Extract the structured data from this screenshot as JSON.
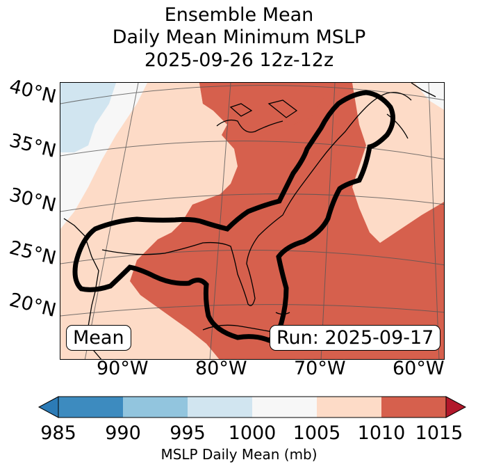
{
  "title": {
    "line1": "Ensemble Mean",
    "line2": "Daily Mean Minimum MSLP",
    "line3": "2025-09-26 12z-12z"
  },
  "map": {
    "lat_labels": [
      "40°N",
      "35°N",
      "30°N",
      "25°N",
      "20°N"
    ],
    "lon_labels": [
      "90°W",
      "80°W",
      "70°W",
      "60°W"
    ],
    "mean_box": "Mean",
    "run_box": "Run: 2025-09-17"
  },
  "colorbar": {
    "label": "MSLP Daily Mean (mb)",
    "ticks": [
      "985",
      "990",
      "995",
      "1000",
      "1005",
      "1010",
      "1015"
    ],
    "colors": [
      "#2c7bb6",
      "#3d8bbf",
      "#92c5de",
      "#d1e5f0",
      "#f7f7f7",
      "#fddbc7",
      "#d6604d",
      "#b2182b"
    ]
  }
}
